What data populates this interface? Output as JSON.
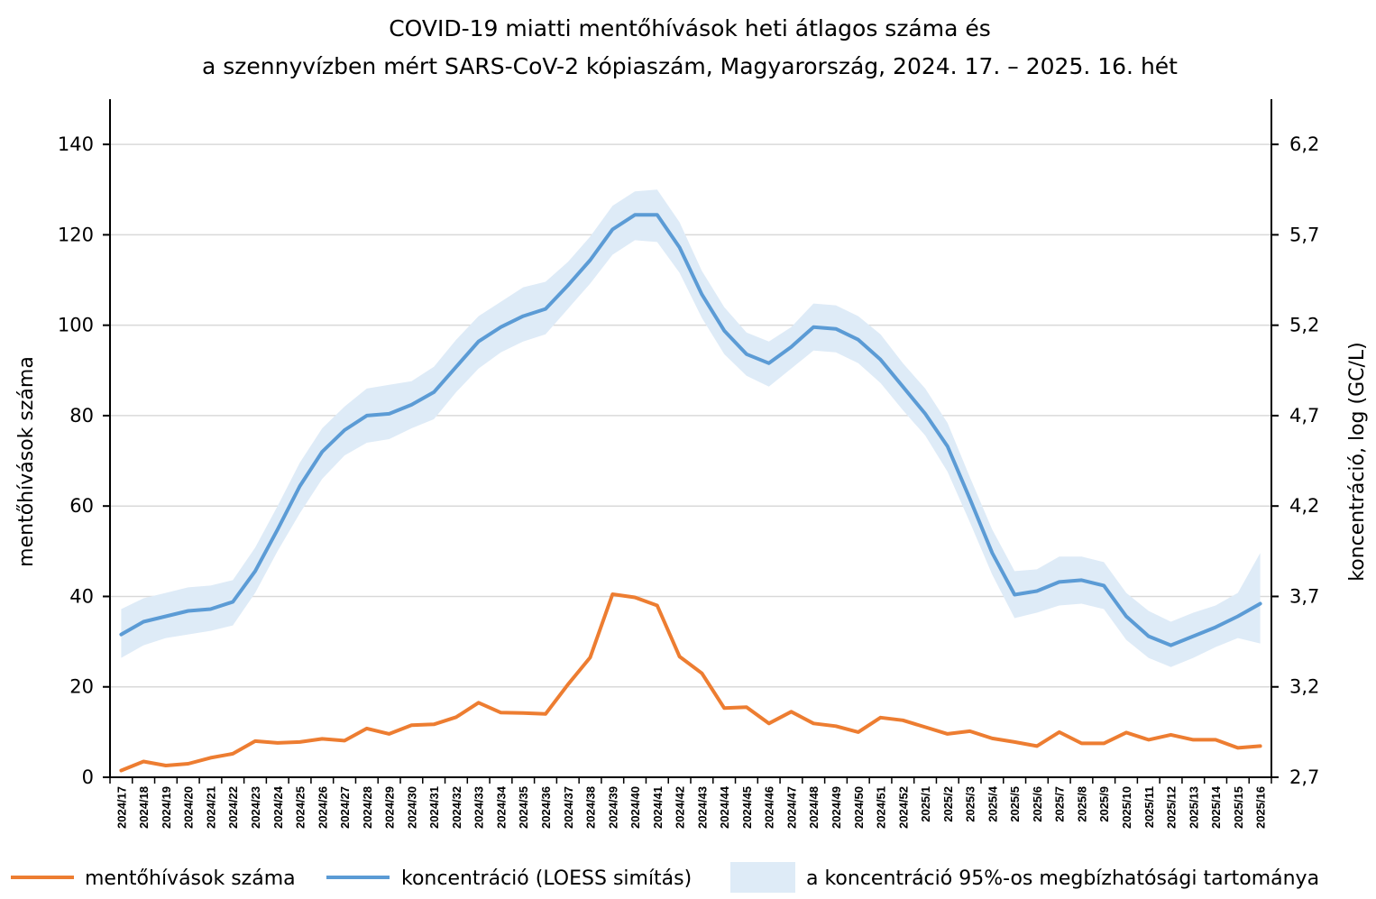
{
  "chart_data": {
    "type": "line",
    "title": [
      "COVID-19 miatti mentőhívások heti átlagos száma és",
      "a szennyvízben mért SARS-CoV-2 kópiaszám, Magyarország, 2024. 17. – 2025. 16. hét"
    ],
    "ylabel_left": "mentőhívások száma",
    "ylabel_right": "koncentráció, log (GC/L)",
    "xlabel": "",
    "ylim_left": [
      0,
      150
    ],
    "ylim_right": [
      2.7,
      6.45
    ],
    "yticks_left": [
      0,
      20,
      40,
      60,
      80,
      100,
      120,
      140
    ],
    "yticks_right": [
      "2,7",
      "3,2",
      "3,7",
      "4,2",
      "4,7",
      "5,2",
      "5,7",
      "6,2"
    ],
    "yticks_right_values": [
      2.7,
      3.2,
      3.7,
      4.2,
      4.7,
      5.2,
      5.7,
      6.2
    ],
    "grid": "horizontal",
    "legend_position": "bottom",
    "categories": [
      "2024/17",
      "2024/18",
      "2024/19",
      "2024/20",
      "2024/21",
      "2024/22",
      "2024/23",
      "2024/24",
      "2024/25",
      "2024/26",
      "2024/27",
      "2024/28",
      "2024/29",
      "2024/30",
      "2024/31",
      "2024/32",
      "2024/33",
      "2024/34",
      "2024/35",
      "2024/36",
      "2024/37",
      "2024/38",
      "2024/39",
      "2024/40",
      "2024/41",
      "2024/42",
      "2024/43",
      "2024/44",
      "2024/45",
      "2024/46",
      "2024/47",
      "2024/48",
      "2024/49",
      "2024/50",
      "2024/51",
      "2024/52",
      "2025/1",
      "2025/2",
      "2025/3",
      "2025/4",
      "2025/5",
      "2025/6",
      "2025/7",
      "2025/8",
      "2025/9",
      "2025/10",
      "2025/11",
      "2025/12",
      "2025/13",
      "2025/14",
      "2025/15",
      "2025/16"
    ],
    "series": [
      {
        "name": "mentőhívások száma",
        "axis": "left",
        "color": "#ED7D31",
        "values": [
          1.5,
          3.5,
          2.6,
          3.0,
          4.3,
          5.2,
          8.0,
          7.6,
          7.8,
          8.5,
          8.1,
          10.8,
          9.6,
          11.5,
          11.7,
          13.3,
          16.5,
          14.3,
          14.2,
          14.0,
          20.5,
          26.5,
          40.5,
          39.8,
          38.0,
          26.7,
          23.0,
          15.3,
          15.5,
          11.9,
          14.5,
          11.9,
          11.3,
          10.0,
          13.2,
          12.6,
          11.1,
          9.6,
          10.2,
          8.6,
          7.8,
          6.9,
          10.0,
          7.5,
          7.5,
          9.9,
          8.3,
          9.4,
          8.3,
          8.3,
          6.5,
          6.9
        ]
      },
      {
        "name": "koncentráció (LOESS simítás)",
        "axis": "right",
        "color": "#5B9BD5",
        "values": [
          3.49,
          3.56,
          3.59,
          3.62,
          3.63,
          3.67,
          3.84,
          4.07,
          4.31,
          4.5,
          4.62,
          4.7,
          4.71,
          4.76,
          4.83,
          4.97,
          5.11,
          5.19,
          5.25,
          5.29,
          5.42,
          5.56,
          5.73,
          5.81,
          5.81,
          5.63,
          5.37,
          5.17,
          5.04,
          4.99,
          5.08,
          5.19,
          5.18,
          5.12,
          5.01,
          4.86,
          4.71,
          4.53,
          4.24,
          3.94,
          3.71,
          3.73,
          3.78,
          3.79,
          3.76,
          3.59,
          3.48,
          3.43,
          3.48,
          3.53,
          3.59,
          3.66
        ]
      }
    ],
    "band": {
      "name": "a koncentráció 95%-os megbízhatósági tartománya",
      "axis": "right",
      "color": "#DEEBF7",
      "lower": [
        3.36,
        3.43,
        3.47,
        3.49,
        3.51,
        3.54,
        3.72,
        3.95,
        4.16,
        4.35,
        4.48,
        4.55,
        4.57,
        4.63,
        4.68,
        4.83,
        4.96,
        5.05,
        5.11,
        5.15,
        5.29,
        5.43,
        5.59,
        5.67,
        5.66,
        5.49,
        5.24,
        5.04,
        4.92,
        4.86,
        4.96,
        5.06,
        5.05,
        4.99,
        4.88,
        4.73,
        4.59,
        4.39,
        4.11,
        3.82,
        3.58,
        3.61,
        3.65,
        3.66,
        3.63,
        3.46,
        3.36,
        3.31,
        3.36,
        3.42,
        3.47,
        3.44
      ],
      "upper": [
        3.63,
        3.69,
        3.72,
        3.75,
        3.76,
        3.79,
        3.97,
        4.2,
        4.44,
        4.63,
        4.75,
        4.85,
        4.87,
        4.89,
        4.97,
        5.12,
        5.25,
        5.33,
        5.41,
        5.44,
        5.55,
        5.69,
        5.86,
        5.94,
        5.95,
        5.77,
        5.5,
        5.3,
        5.16,
        5.11,
        5.19,
        5.32,
        5.31,
        5.25,
        5.15,
        4.99,
        4.85,
        4.66,
        4.36,
        4.07,
        3.84,
        3.85,
        3.92,
        3.92,
        3.89,
        3.72,
        3.62,
        3.56,
        3.61,
        3.65,
        3.72,
        3.94
      ]
    }
  }
}
